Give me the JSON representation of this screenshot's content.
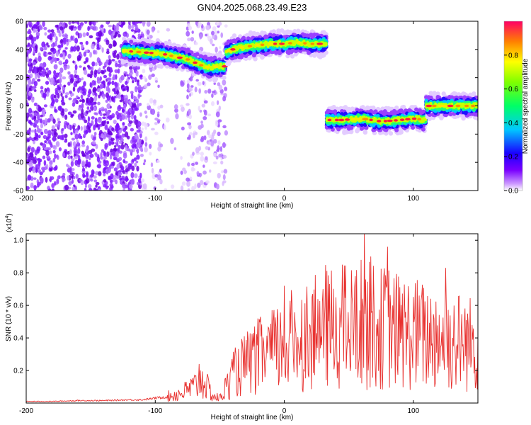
{
  "title": "GN04.2025.068.23.49.E23",
  "chart_data": [
    {
      "type": "heatmap",
      "xlabel": "Height of straight line (km)",
      "ylabel": "Frequency (Hz)",
      "xlim": [
        -200,
        150
      ],
      "ylim": [
        -60,
        60
      ],
      "xticks": [
        "-200",
        "-100",
        "0",
        "100"
      ],
      "xtick_values": [
        -200,
        -100,
        0,
        100
      ],
      "yticks": [
        "-60",
        "-40",
        "-20",
        "0",
        "20",
        "40",
        "60"
      ],
      "ytick_values": [
        -60,
        -40,
        -20,
        0,
        20,
        40,
        60
      ],
      "colorbar": {
        "label": "Normalized spectral amplitude",
        "range": [
          0,
          1
        ],
        "ticks": [
          "0.0",
          "0.2",
          "0.4",
          "0.6",
          "0.8"
        ],
        "tick_values": [
          0,
          0.2,
          0.4,
          0.6,
          0.8
        ]
      },
      "noise_region": {
        "x": [
          -200,
          -45
        ],
        "y": [
          -60,
          60
        ],
        "dense_until_x": -110
      },
      "ridge_segments": [
        {
          "x": [
            -125,
            -110,
            -95,
            -85,
            -75,
            -65,
            -58,
            -52,
            -45
          ],
          "freq": [
            39,
            38,
            37,
            35,
            33,
            29,
            27,
            28,
            28
          ]
        },
        {
          "x": [
            -45,
            -40,
            -30,
            -20,
            -10,
            0,
            10,
            20,
            33
          ],
          "freq": [
            38,
            40,
            42,
            43,
            44,
            44,
            45,
            44,
            44
          ]
        },
        {
          "x": [
            33,
            45,
            60,
            75,
            90,
            100,
            110
          ],
          "freq": [
            -10,
            -10,
            -9,
            -11,
            -10,
            -9,
            -10
          ]
        },
        {
          "x": [
            110,
            120,
            135,
            150
          ],
          "freq": [
            0,
            0,
            0,
            0
          ]
        }
      ]
    },
    {
      "type": "line",
      "xlabel": "Height of straight line (km)",
      "ylabel": "SNR (10 * v/v)",
      "ylabel_multiplier": "(x10^4)",
      "xlim": [
        -200,
        150
      ],
      "ylim": [
        0,
        1.04
      ],
      "xticks": [
        "-200",
        "-100",
        "0",
        "100"
      ],
      "xtick_values": [
        -200,
        -100,
        0,
        100
      ],
      "yticks": [
        "0.2",
        "0.4",
        "0.6",
        "0.8",
        "1.0"
      ],
      "ytick_values": [
        0.2,
        0.4,
        0.6,
        0.8,
        1.0
      ],
      "series": [
        {
          "color": "#e8302e",
          "x": [
            -200,
            -180,
            -160,
            -140,
            -120,
            -110,
            -100,
            -90,
            -80,
            -75,
            -70,
            -66,
            -63,
            -60,
            -55,
            -50,
            -45,
            -40,
            -35,
            -30,
            -25,
            -20,
            -15,
            -10,
            -5,
            0,
            5,
            10,
            15,
            20,
            25,
            30,
            35,
            40,
            45,
            50,
            55,
            60,
            65,
            70,
            75,
            80,
            85,
            90,
            95,
            100,
            105,
            110,
            115,
            120,
            125,
            130,
            135,
            140,
            145,
            150
          ],
          "y": [
            0.01,
            0.01,
            0.015,
            0.015,
            0.02,
            0.02,
            0.03,
            0.04,
            0.06,
            0.08,
            0.1,
            0.12,
            0.15,
            0.1,
            0.04,
            0.03,
            0.1,
            0.18,
            0.22,
            0.25,
            0.27,
            0.3,
            0.32,
            0.33,
            0.35,
            0.36,
            0.4,
            0.42,
            0.43,
            0.45,
            0.45,
            0.5,
            0.48,
            0.5,
            0.5,
            0.48,
            0.5,
            0.52,
            0.5,
            0.5,
            0.48,
            0.5,
            0.47,
            0.46,
            0.45,
            0.45,
            0.44,
            0.42,
            0.43,
            0.42,
            0.41,
            0.4,
            0.4,
            0.39,
            0.38,
            0.38
          ],
          "peaks": [
            {
              "x": -66,
              "y": 0.24
            },
            {
              "x": 0,
              "y": 0.72
            },
            {
              "x": 30,
              "y": 0.7
            },
            {
              "x": 45,
              "y": 0.85
            },
            {
              "x": 55,
              "y": 0.78
            },
            {
              "x": 62,
              "y": 1.04
            },
            {
              "x": 67,
              "y": 0.9
            },
            {
              "x": 80,
              "y": 0.96
            },
            {
              "x": 125,
              "y": 0.83
            }
          ]
        }
      ]
    }
  ]
}
